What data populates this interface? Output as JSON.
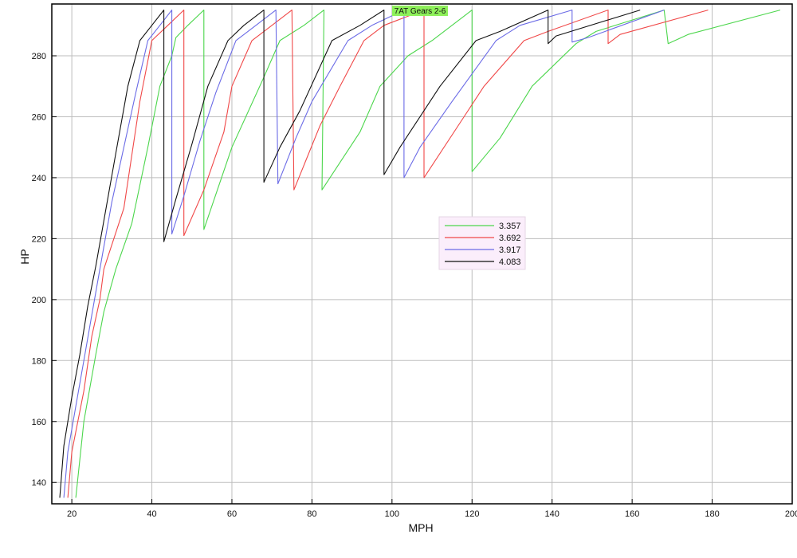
{
  "chart_data": {
    "type": "line",
    "title": "7AT Gears 2-6",
    "xlabel": "MPH",
    "ylabel": "HP",
    "xlim": [
      15,
      200
    ],
    "ylim": [
      133,
      297
    ],
    "xticks": [
      20,
      40,
      60,
      80,
      100,
      120,
      140,
      160,
      180,
      200
    ],
    "yticks": [
      140,
      160,
      180,
      200,
      220,
      240,
      260,
      280
    ],
    "grid": true,
    "legend_position": "center-right",
    "series": [
      {
        "name": "3.357",
        "color": "#4cd64c",
        "points": [
          [
            21,
            135
          ],
          [
            23,
            160
          ],
          [
            26,
            182
          ],
          [
            28,
            196
          ],
          [
            31,
            210
          ],
          [
            35,
            225
          ],
          [
            39,
            250
          ],
          [
            42,
            270
          ],
          [
            45,
            280
          ],
          [
            46,
            286
          ],
          [
            49,
            290
          ],
          [
            53,
            295
          ],
          [
            53,
            223
          ],
          [
            60,
            250
          ],
          [
            68,
            273
          ],
          [
            72,
            285
          ],
          [
            78,
            290
          ],
          [
            83,
            295
          ],
          [
            82.5,
            236
          ],
          [
            92,
            255
          ],
          [
            97,
            270
          ],
          [
            104,
            280
          ],
          [
            110,
            285
          ],
          [
            120,
            295
          ],
          [
            120,
            242
          ],
          [
            127,
            253
          ],
          [
            135,
            270
          ],
          [
            146,
            284
          ],
          [
            151,
            288
          ],
          [
            168,
            295
          ],
          [
            169,
            284
          ],
          [
            174,
            287
          ],
          [
            197,
            295
          ]
        ]
      },
      {
        "name": "3.692",
        "color": "#f04848",
        "points": [
          [
            19,
            135
          ],
          [
            20,
            150
          ],
          [
            23,
            170
          ],
          [
            25,
            188
          ],
          [
            27,
            200
          ],
          [
            28,
            210
          ],
          [
            33,
            230
          ],
          [
            37,
            265
          ],
          [
            40,
            285
          ],
          [
            44,
            290
          ],
          [
            48,
            295
          ],
          [
            48,
            221
          ],
          [
            53,
            236
          ],
          [
            58,
            255
          ],
          [
            60,
            270
          ],
          [
            65,
            285
          ],
          [
            70,
            290
          ],
          [
            75,
            295
          ],
          [
            75.5,
            236
          ],
          [
            82,
            257
          ],
          [
            87,
            270
          ],
          [
            93,
            285
          ],
          [
            98,
            290
          ],
          [
            108,
            295
          ],
          [
            108,
            240
          ],
          [
            118,
            260
          ],
          [
            123,
            270
          ],
          [
            133,
            285
          ],
          [
            139,
            288
          ],
          [
            154,
            295
          ],
          [
            154,
            284
          ],
          [
            157,
            287
          ],
          [
            179,
            295
          ]
        ]
      },
      {
        "name": "3.917",
        "color": "#6b6be6",
        "points": [
          [
            18,
            135
          ],
          [
            19,
            150
          ],
          [
            21,
            165
          ],
          [
            23,
            180
          ],
          [
            25,
            195
          ],
          [
            27,
            210
          ],
          [
            30,
            232
          ],
          [
            36,
            268
          ],
          [
            39,
            285
          ],
          [
            42,
            290
          ],
          [
            45,
            295
          ],
          [
            45,
            221.5
          ],
          [
            48,
            234
          ],
          [
            52,
            252
          ],
          [
            56,
            268
          ],
          [
            61,
            285
          ],
          [
            66,
            290
          ],
          [
            71,
            295
          ],
          [
            71.5,
            238
          ],
          [
            76,
            253
          ],
          [
            80,
            265
          ],
          [
            89,
            285
          ],
          [
            95,
            290
          ],
          [
            103,
            295
          ],
          [
            103,
            240
          ],
          [
            107,
            250
          ],
          [
            115,
            265
          ],
          [
            126,
            285
          ],
          [
            132,
            290
          ],
          [
            145,
            295
          ],
          [
            145,
            284.5
          ],
          [
            149,
            286
          ],
          [
            168,
            295
          ]
        ]
      },
      {
        "name": "4.083",
        "color": "#111111",
        "points": [
          [
            17,
            135
          ],
          [
            18,
            152
          ],
          [
            20,
            168
          ],
          [
            22,
            182
          ],
          [
            24,
            198
          ],
          [
            26,
            211
          ],
          [
            31,
            248
          ],
          [
            34,
            270
          ],
          [
            37,
            285
          ],
          [
            40,
            290
          ],
          [
            43,
            295
          ],
          [
            43,
            219
          ],
          [
            46,
            233
          ],
          [
            50,
            251
          ],
          [
            54,
            270
          ],
          [
            59,
            285
          ],
          [
            63,
            290
          ],
          [
            68,
            295
          ],
          [
            68,
            238.5
          ],
          [
            72,
            250
          ],
          [
            77,
            262
          ],
          [
            85,
            285
          ],
          [
            92,
            290
          ],
          [
            98,
            295
          ],
          [
            98,
            241
          ],
          [
            102,
            250
          ],
          [
            112,
            270
          ],
          [
            121,
            285
          ],
          [
            127,
            288
          ],
          [
            139,
            295
          ],
          [
            139,
            284
          ],
          [
            141,
            286.5
          ],
          [
            162,
            295
          ]
        ]
      }
    ]
  }
}
